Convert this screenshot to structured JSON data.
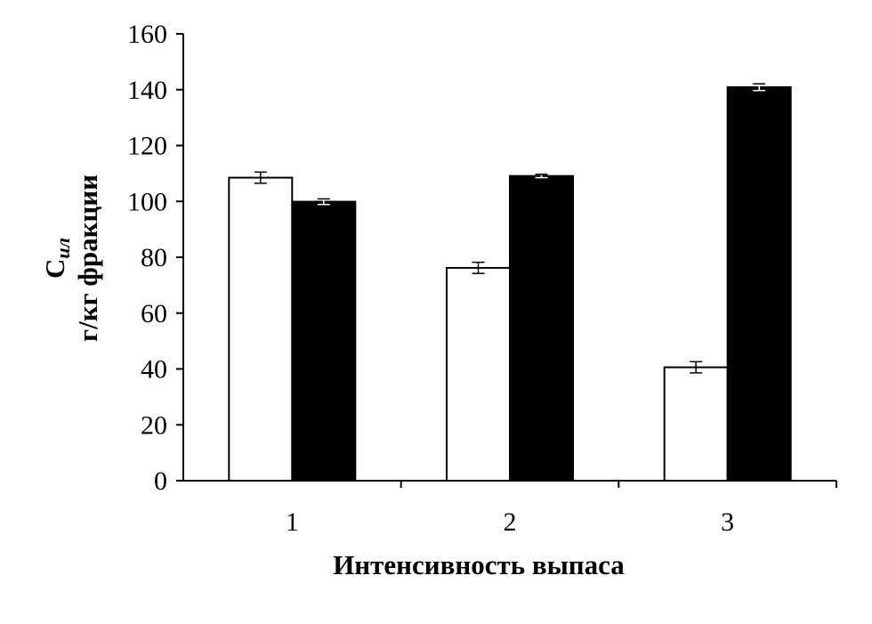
{
  "chart_data": {
    "type": "bar",
    "categories": [
      "1",
      "2",
      "3"
    ],
    "series": [
      {
        "values": [
          108.5,
          76.2,
          40.6
        ],
        "errors": [
          2.0,
          2.0,
          2.0
        ],
        "color": "#ffffff"
      },
      {
        "values": [
          99.9,
          109.1,
          140.9
        ],
        "errors": [
          1.0,
          0.6,
          1.2
        ],
        "color": "#000000"
      }
    ],
    "y_ticks": [
      "0",
      "20",
      "40",
      "60",
      "80",
      "100",
      "120",
      "140",
      "160"
    ],
    "ylim": [
      0,
      160
    ],
    "xlabel": "Интенсивность  выпаса",
    "ylabel_main": "С",
    "ylabel_sub": "ил",
    "ylabel_line2": "г/кг фракции",
    "grid": false,
    "legend": "none"
  }
}
